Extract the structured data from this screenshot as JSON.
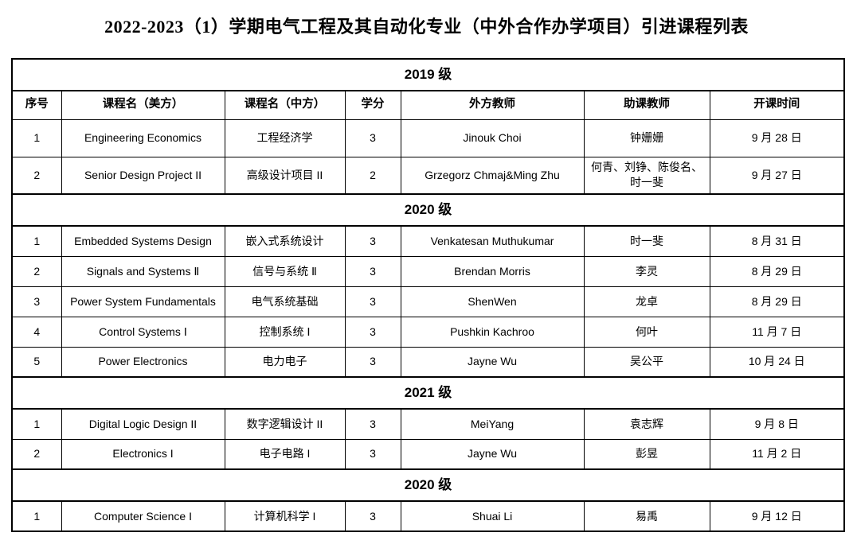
{
  "title": "2022-2023（1）学期电气工程及其自动化专业（中外合作办学项目）引进课程列表",
  "columns": [
    "序号",
    "课程名（美方）",
    "课程名（中方）",
    "学分",
    "外方教师",
    "助课教师",
    "开课时间"
  ],
  "sections": [
    {
      "label": "2019 级",
      "rows": [
        [
          "1",
          "Engineering Economics",
          "工程经济学",
          "3",
          "Jinouk Choi",
          "钟姗姗",
          "9 月 28 日"
        ],
        [
          "2",
          "Senior Design Project II",
          "高级设计项目 II",
          "2",
          "Grzegorz Chmaj&Ming Zhu",
          "何青、刘铮、陈俊名、时一斐",
          "9 月 27 日"
        ]
      ]
    },
    {
      "label": "2020 级",
      "rows": [
        [
          "1",
          "Embedded Systems Design",
          "嵌入式系统设计",
          "3",
          "Venkatesan Muthukumar",
          "时一斐",
          "8 月 31 日"
        ],
        [
          "2",
          "Signals and Systems Ⅱ",
          "信号与系统 Ⅱ",
          "3",
          "Brendan Morris",
          "李灵",
          "8 月 29 日"
        ],
        [
          "3",
          "Power System Fundamentals",
          "电气系统基础",
          "3",
          "ShenWen",
          "龙卓",
          "8 月 29 日"
        ],
        [
          "4",
          "Control Systems Ⅰ",
          "控制系统 Ⅰ",
          "3",
          "Pushkin Kachroo",
          "何叶",
          "11 月 7 日"
        ],
        [
          "5",
          "Power Electronics",
          "电力电子",
          "3",
          "Jayne Wu",
          "吴公平",
          "10 月 24 日"
        ]
      ]
    },
    {
      "label": "2021 级",
      "rows": [
        [
          "1",
          "Digital Logic Design II",
          "数字逻辑设计 II",
          "3",
          "MeiYang",
          "袁志辉",
          "9 月 8 日"
        ],
        [
          "2",
          "Electronics I",
          "电子电路 I",
          "3",
          "Jayne Wu",
          "彭昱",
          "11 月 2 日"
        ]
      ]
    },
    {
      "label": "2020 级",
      "rows": [
        [
          "1",
          "Computer Science I",
          "计算机科学 I",
          "3",
          "Shuai Li",
          "易禹",
          "9 月 12 日"
        ]
      ]
    }
  ],
  "column_cell_names": [
    "cell-index",
    "cell-course-en",
    "cell-course-zh",
    "cell-credits",
    "cell-foreign-teacher",
    "cell-assistant-teacher",
    "cell-start-date"
  ],
  "colors": {
    "text": "#000000",
    "border": "#000000",
    "background": "#ffffff"
  }
}
